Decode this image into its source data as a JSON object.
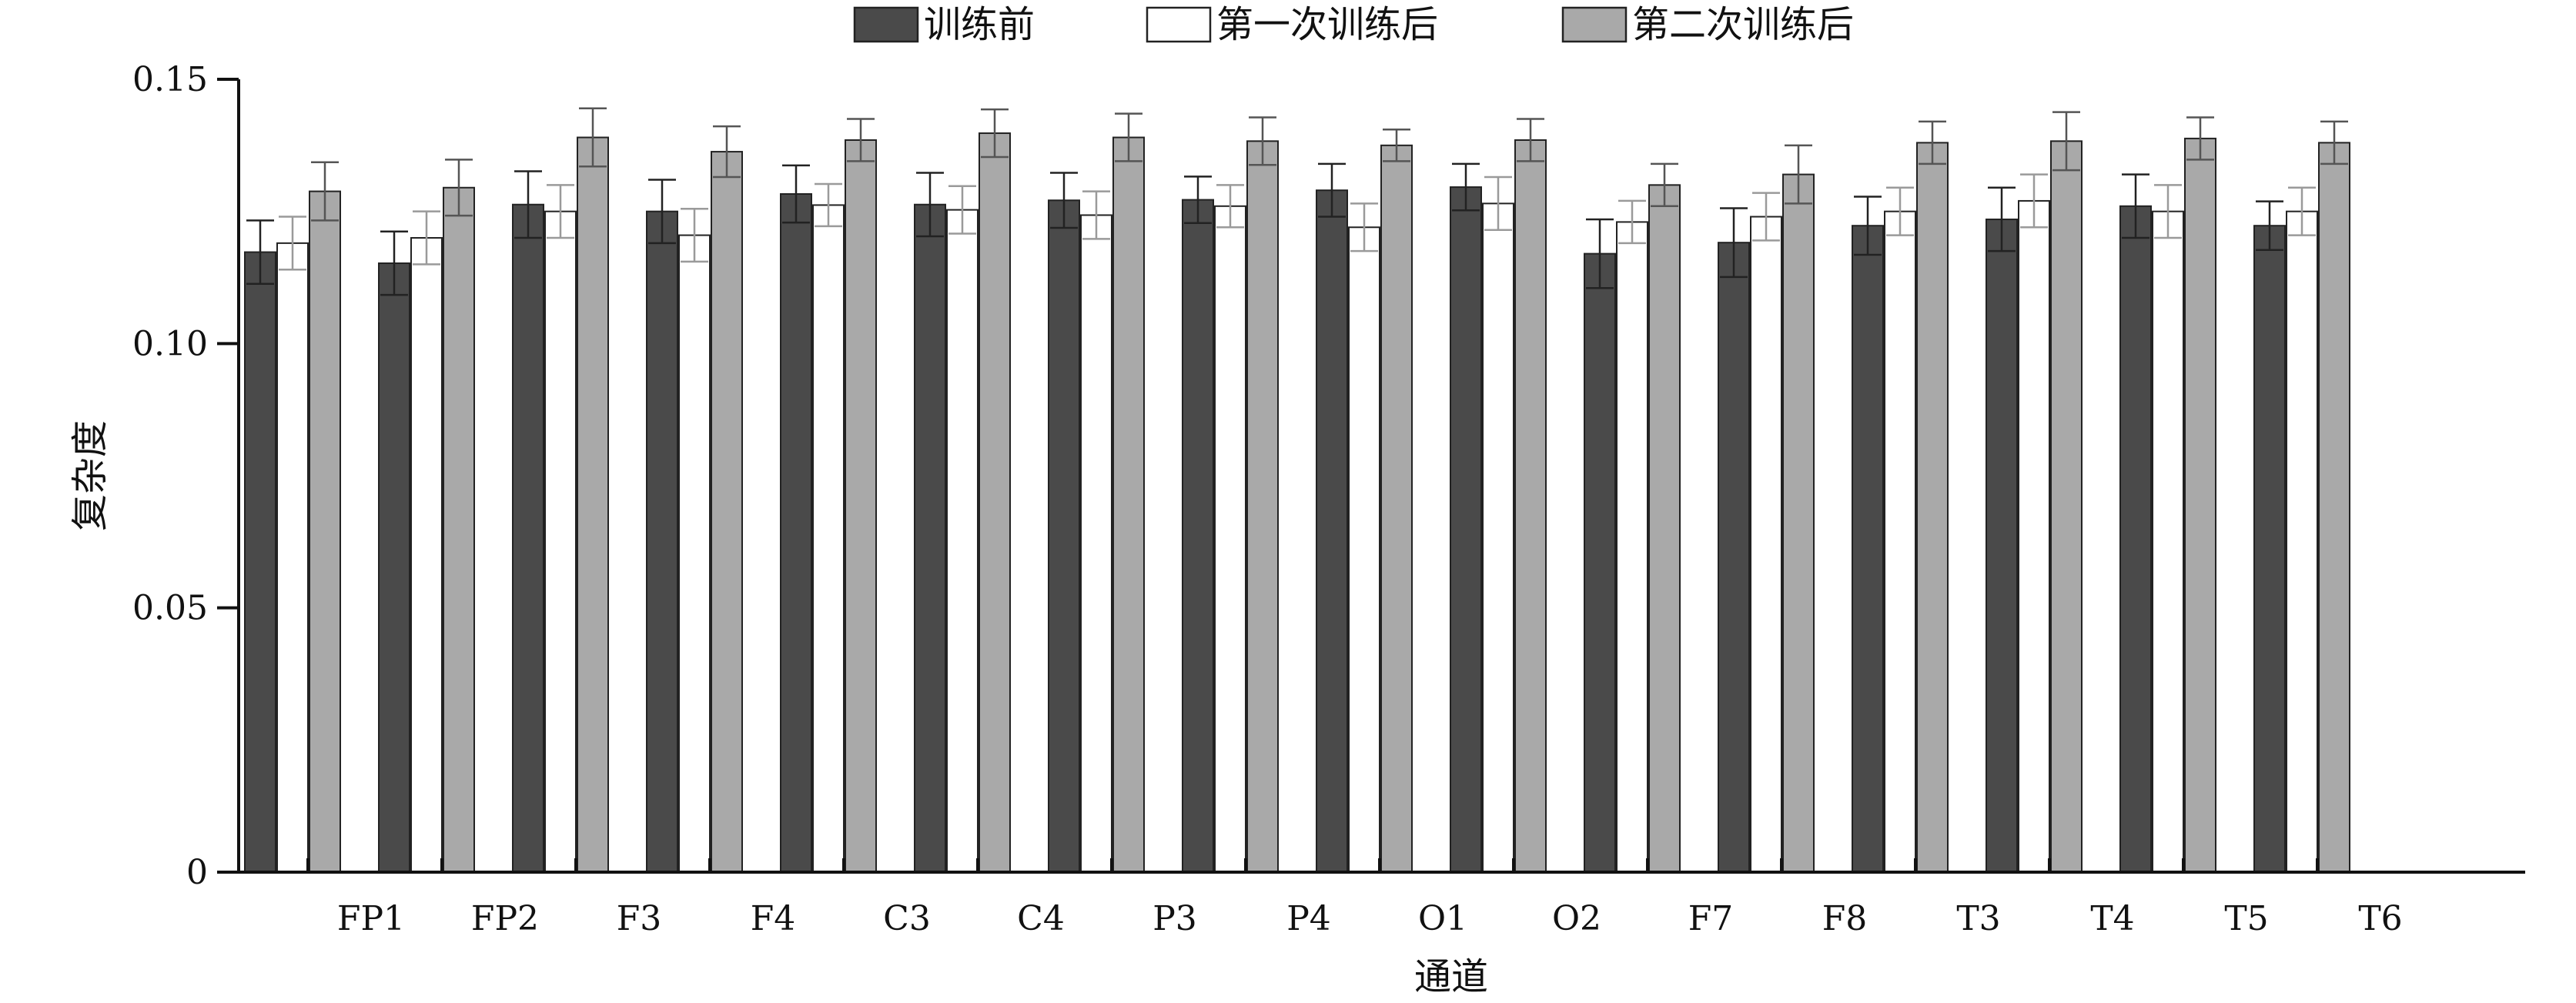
{
  "chart_data": {
    "type": "bar",
    "title": "",
    "xlabel": "通道",
    "ylabel": "复杂度",
    "ylim": [
      0,
      0.15
    ],
    "yticks": [
      0,
      0.05,
      0.1,
      0.15
    ],
    "ytick_labels": [
      "0",
      "0.05",
      "0.10",
      "0.15"
    ],
    "grid": false,
    "legend_position": "top-center",
    "error_bars": true,
    "categories": [
      "FP1",
      "FP2",
      "F3",
      "F4",
      "C3",
      "C4",
      "P3",
      "P4",
      "O1",
      "O2",
      "F7",
      "F8",
      "T3",
      "T4",
      "T5",
      "T6"
    ],
    "series": [
      {
        "name": "训练前",
        "color": "#4a4a4a",
        "values": [
          0.1173,
          0.1152,
          0.1263,
          0.125,
          0.1283,
          0.1263,
          0.1271,
          0.1272,
          0.129,
          0.1296,
          0.117,
          0.1191,
          0.1223,
          0.1235,
          0.126,
          0.1223
        ],
        "errors": [
          0.006,
          0.006,
          0.0063,
          0.006,
          0.0054,
          0.006,
          0.0052,
          0.0044,
          0.005,
          0.0044,
          0.0065,
          0.0065,
          0.0055,
          0.006,
          0.006,
          0.0046
        ]
      },
      {
        "name": "第一次训练后",
        "color": "#ffffff",
        "values": [
          0.119,
          0.12,
          0.125,
          0.1205,
          0.1262,
          0.1253,
          0.1243,
          0.126,
          0.122,
          0.1265,
          0.123,
          0.124,
          0.125,
          0.127,
          0.125,
          0.125
        ],
        "errors": [
          0.005,
          0.005,
          0.005,
          0.005,
          0.004,
          0.0045,
          0.0045,
          0.004,
          0.0045,
          0.005,
          0.004,
          0.0045,
          0.0045,
          0.005,
          0.005,
          0.0045
        ]
      },
      {
        "name": "第二次训练后",
        "color": "#a9a9a9",
        "values": [
          0.1288,
          0.1295,
          0.139,
          0.1363,
          0.1385,
          0.1398,
          0.139,
          0.1383,
          0.1375,
          0.1385,
          0.13,
          0.132,
          0.138,
          0.1383,
          0.1388,
          0.138
        ],
        "errors": [
          0.0055,
          0.0053,
          0.0055,
          0.0048,
          0.004,
          0.0045,
          0.0045,
          0.0045,
          0.003,
          0.004,
          0.004,
          0.0055,
          0.004,
          0.0055,
          0.004,
          0.004
        ]
      }
    ]
  }
}
